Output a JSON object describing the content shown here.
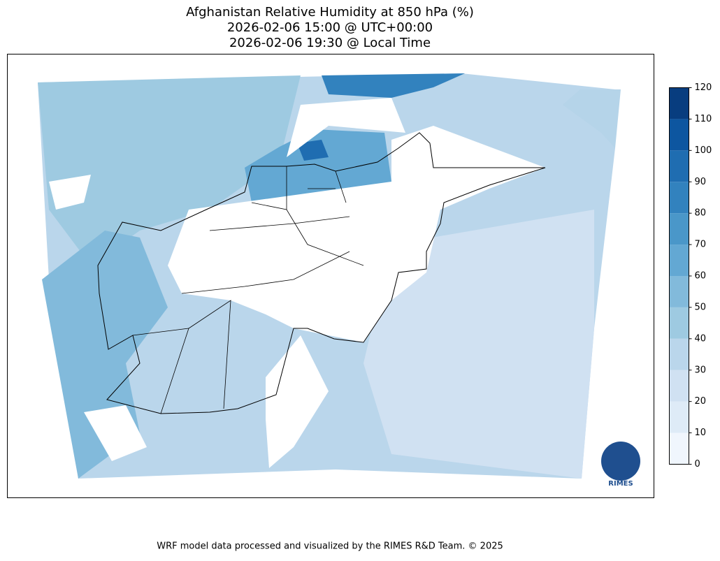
{
  "title": [
    "Afghanistan Relative Humidity at 850 hPa (%)",
    "2026-02-06 15:00 @ UTC+00:00",
    "2026-02-06 19:30 @ Local Time"
  ],
  "colorbar": {
    "lim": [
      0,
      120
    ],
    "ticks": [
      0,
      10,
      20,
      30,
      40,
      50,
      60,
      70,
      80,
      90,
      100,
      110,
      120
    ],
    "colors": [
      "#f0f6fd",
      "#deebf7",
      "#d0e1f2",
      "#bad6eb",
      "#9ecae1",
      "#82badb",
      "#63a8d3",
      "#4a97c9",
      "#3282be",
      "#1f6db1",
      "#0d56a0",
      "#083d7f"
    ]
  },
  "logo": "RIMES",
  "footer": "WRF model data processed and visualized by the RIMES R&D Team. © 2025"
}
